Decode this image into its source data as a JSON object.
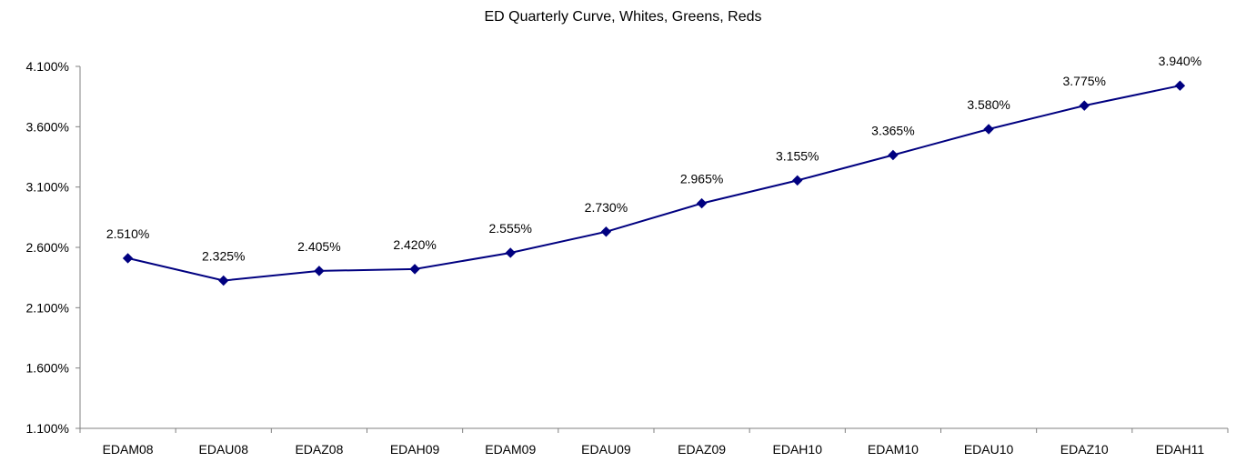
{
  "chart_data": {
    "type": "line",
    "title": "ED Quarterly Curve, Whites, Greens, Reds",
    "xlabel": "",
    "ylabel": "",
    "categories": [
      "EDAM08",
      "EDAU08",
      "EDAZ08",
      "EDAH09",
      "EDAM09",
      "EDAU09",
      "EDAZ09",
      "EDAH10",
      "EDAM10",
      "EDAU10",
      "EDAZ10",
      "EDAH11"
    ],
    "series": [
      {
        "values": [
          2.51,
          2.325,
          2.405,
          2.42,
          2.555,
          2.73,
          2.965,
          3.155,
          3.365,
          3.58,
          3.775,
          3.94
        ],
        "labels": [
          "2.510%",
          "2.325%",
          "2.405%",
          "2.420%",
          "2.555%",
          "2.730%",
          "2.965%",
          "3.155%",
          "3.365%",
          "3.580%",
          "3.775%",
          "3.940%"
        ],
        "color": "#000080",
        "marker": "diamond"
      }
    ],
    "ylim": [
      1.1,
      4.1
    ],
    "y_ticks": [
      1.1,
      1.6,
      2.1,
      2.6,
      3.1,
      3.6,
      4.1
    ],
    "y_tick_labels": [
      "1.100%",
      "1.600%",
      "2.100%",
      "2.600%",
      "3.100%",
      "3.600%",
      "4.100%"
    ],
    "grid": false,
    "legend": "none",
    "axis_color": "#808080",
    "text_color": "#000000"
  }
}
